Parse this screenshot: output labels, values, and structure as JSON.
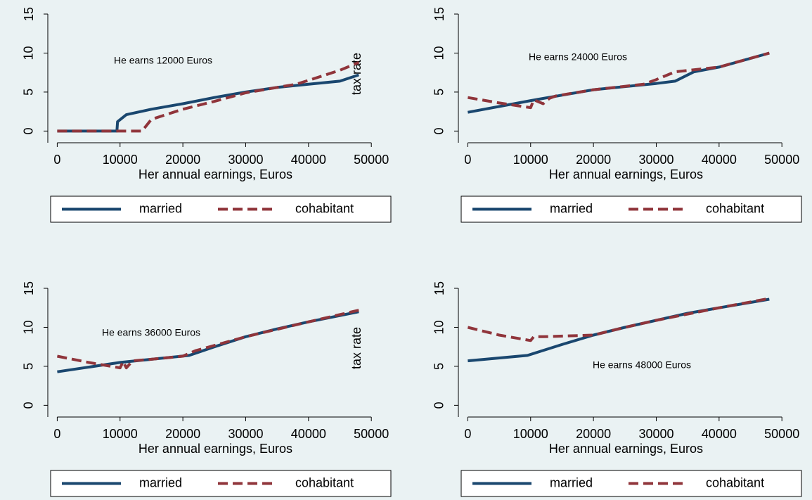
{
  "chart_data": [
    {
      "type": "line",
      "annotation": "He earns 12000 Euros",
      "xlabel": "Her annual earnings, Euros",
      "ylabel": "tax rate",
      "xlim": [
        -1500,
        53000
      ],
      "ylim": [
        -1.5,
        15
      ],
      "xticks": [
        0,
        10000,
        20000,
        30000,
        40000,
        50000
      ],
      "yticks": [
        0,
        5,
        10,
        15
      ],
      "legend": "bottom",
      "series": [
        {
          "name": "married",
          "color": "#1a476f",
          "style": "solid",
          "x": [
            0,
            9500,
            9600,
            11000,
            15000,
            20000,
            25000,
            30000,
            35000,
            40000,
            45000,
            48000
          ],
          "values": [
            0,
            0,
            1.2,
            2.1,
            2.8,
            3.5,
            4.3,
            5.0,
            5.6,
            6.0,
            6.4,
            7.2
          ]
        },
        {
          "name": "cohabitant",
          "color": "#90353b",
          "style": "dashed",
          "x": [
            0,
            13500,
            15000,
            20000,
            25000,
            30000,
            35000,
            38000,
            40000,
            45000,
            48000
          ],
          "values": [
            0,
            0,
            1.5,
            2.8,
            3.8,
            4.9,
            5.6,
            6.0,
            6.5,
            7.8,
            8.8
          ]
        }
      ]
    },
    {
      "type": "line",
      "annotation": "He earns 24000 Euros",
      "xlabel": "Her annual earnings, Euros",
      "xlim": [
        -1500,
        53000
      ],
      "ylim": [
        -1.5,
        15
      ],
      "xticks": [
        0,
        10000,
        20000,
        30000,
        40000,
        50000
      ],
      "yticks": [
        0,
        5,
        10,
        15
      ],
      "legend": "bottom",
      "series": [
        {
          "name": "married",
          "color": "#1a476f",
          "style": "solid",
          "x": [
            0,
            10000,
            15000,
            20000,
            30000,
            33000,
            36000,
            40000,
            48000
          ],
          "values": [
            2.4,
            3.9,
            4.6,
            5.3,
            6.1,
            6.4,
            7.6,
            8.2,
            10.0
          ]
        },
        {
          "name": "cohabitant",
          "color": "#90353b",
          "style": "dashed",
          "x": [
            0,
            5000,
            10000,
            10500,
            12000,
            13000,
            14000,
            20000,
            28000,
            30000,
            33000,
            40000,
            48000
          ],
          "values": [
            4.3,
            3.6,
            3.0,
            4.0,
            3.5,
            4.2,
            4.5,
            5.3,
            6.0,
            6.6,
            7.6,
            8.2,
            10.0
          ]
        }
      ]
    },
    {
      "type": "line",
      "annotation": "He earns 36000 Euros",
      "xlabel": "Her annual earnings, Euros",
      "ylabel": "tax rate",
      "xlim": [
        -1500,
        53000
      ],
      "ylim": [
        -1.5,
        15
      ],
      "xticks": [
        0,
        10000,
        20000,
        30000,
        40000,
        50000
      ],
      "yticks": [
        0,
        5,
        10,
        15
      ],
      "legend": "bottom",
      "series": [
        {
          "name": "married",
          "color": "#1a476f",
          "style": "solid",
          "x": [
            0,
            10000,
            15000,
            21000,
            25000,
            30000,
            35000,
            40000,
            48000
          ],
          "values": [
            4.3,
            5.5,
            5.9,
            6.4,
            7.5,
            8.8,
            9.8,
            10.7,
            12.0
          ]
        },
        {
          "name": "cohabitant",
          "color": "#90353b",
          "style": "dashed",
          "x": [
            0,
            5000,
            10000,
            10500,
            11000,
            12000,
            15000,
            20000,
            22000,
            30000,
            40000,
            48000
          ],
          "values": [
            6.3,
            5.5,
            4.8,
            5.6,
            4.8,
            5.7,
            5.9,
            6.3,
            7.0,
            8.8,
            10.7,
            12.2
          ]
        }
      ]
    },
    {
      "type": "line",
      "annotation": "He earns 48000 Euros",
      "xlabel": "Her annual earnings, Euros",
      "xlim": [
        -1500,
        53000
      ],
      "ylim": [
        -1.5,
        15
      ],
      "xticks": [
        0,
        10000,
        20000,
        30000,
        40000,
        50000
      ],
      "yticks": [
        0,
        5,
        10,
        15
      ],
      "legend": "bottom",
      "series": [
        {
          "name": "married",
          "color": "#1a476f",
          "style": "solid",
          "x": [
            0,
            9500,
            15000,
            20000,
            25000,
            30000,
            35000,
            40000,
            48000
          ],
          "values": [
            5.7,
            6.4,
            7.8,
            9.0,
            10.0,
            10.9,
            11.8,
            12.5,
            13.6
          ]
        },
        {
          "name": "cohabitant",
          "color": "#90353b",
          "style": "dashed",
          "x": [
            0,
            5000,
            10000,
            10500,
            12000,
            20000,
            25000,
            30000,
            40000,
            48000
          ],
          "values": [
            10.0,
            9.0,
            8.3,
            8.8,
            8.8,
            9.0,
            10.0,
            10.9,
            12.5,
            13.7
          ]
        }
      ]
    }
  ]
}
